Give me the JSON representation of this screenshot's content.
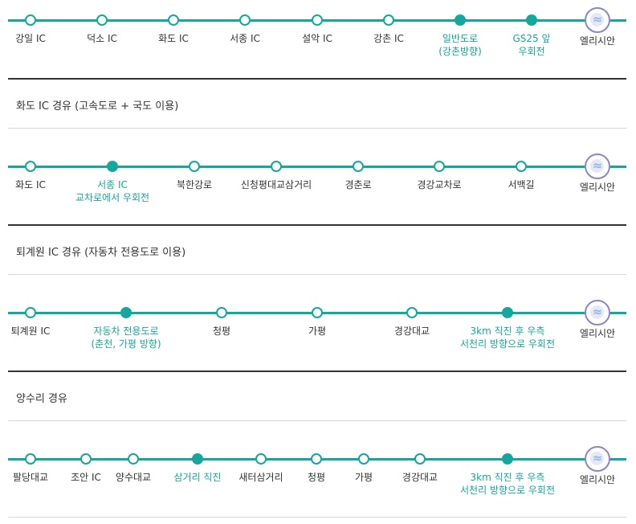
{
  "routes": [
    {
      "stops": [
        {
          "label": "강일 IC",
          "filled": false,
          "highlight": false
        },
        {
          "label": "덕소 IC",
          "filled": false,
          "highlight": false
        },
        {
          "label": "화도 IC",
          "filled": false,
          "highlight": false
        },
        {
          "label": "서종 IC",
          "filled": false,
          "highlight": false
        },
        {
          "label": "설악 IC",
          "filled": false,
          "highlight": false
        },
        {
          "label": "강촌 IC",
          "filled": false,
          "highlight": false
        },
        {
          "label": "일반도로",
          "label2": "(강촌방향)",
          "filled": true,
          "highlight": true
        },
        {
          "label": "GS25 앞",
          "label2": "우회전",
          "filled": true,
          "highlight": true
        }
      ],
      "destination": "엘리시안"
    },
    {
      "title": "화도 IC 경유 (고속도로 + 국도 이용)",
      "stops": [
        {
          "label": "화도 IC",
          "filled": false,
          "highlight": false
        },
        {
          "label": "서종 IC",
          "label2": "교차로에서 우회전",
          "filled": true,
          "highlight": true
        },
        {
          "label": "북한강로",
          "filled": false,
          "highlight": false
        },
        {
          "label": "신청평대교삼거리",
          "filled": false,
          "highlight": false
        },
        {
          "label": "경춘로",
          "filled": false,
          "highlight": false
        },
        {
          "label": "경강교차로",
          "filled": false,
          "highlight": false
        },
        {
          "label": "서백길",
          "filled": false,
          "highlight": false
        }
      ],
      "destination": "엘리시안"
    },
    {
      "title": "퇴계원 IC 경유 (자동차 전용도로 이용)",
      "stops": [
        {
          "label": "퇴계원 IC",
          "filled": false,
          "highlight": false
        },
        {
          "label": "자동차 전용도로",
          "label2": "(춘천, 가평 방향)",
          "filled": true,
          "highlight": true
        },
        {
          "label": "청평",
          "filled": false,
          "highlight": false
        },
        {
          "label": "가평",
          "filled": false,
          "highlight": false
        },
        {
          "label": "경강대교",
          "filled": false,
          "highlight": false
        },
        {
          "label": "3km 직진 후 우측",
          "label2": "서천리 방향으로 우회전",
          "filled": true,
          "highlight": true
        }
      ],
      "destination": "엘리시안"
    },
    {
      "title": "양수리 경유",
      "stops": [
        {
          "label": "팔당대교",
          "filled": false,
          "highlight": false
        },
        {
          "label": "조안 IC",
          "filled": false,
          "highlight": false
        },
        {
          "label": "양수대교",
          "filled": false,
          "highlight": false
        },
        {
          "label": "삼거리 직진",
          "filled": true,
          "highlight": true
        },
        {
          "label": "새터삼거리",
          "filled": false,
          "highlight": false
        },
        {
          "label": "청평",
          "filled": false,
          "highlight": false
        },
        {
          "label": "가평",
          "filled": false,
          "highlight": false
        },
        {
          "label": "경강대교",
          "filled": false,
          "highlight": false
        },
        {
          "label": "3km 직진 후 우측",
          "label2": "서천리 방향으로 우회전",
          "filled": true,
          "highlight": true
        }
      ],
      "destination": "엘리시안"
    }
  ],
  "colors": {
    "accent": "#14a79d",
    "destination_ring": "#8a86c6"
  },
  "icons": {
    "stop": "circle-dot-icon",
    "destination": "elysian-logo-icon"
  }
}
